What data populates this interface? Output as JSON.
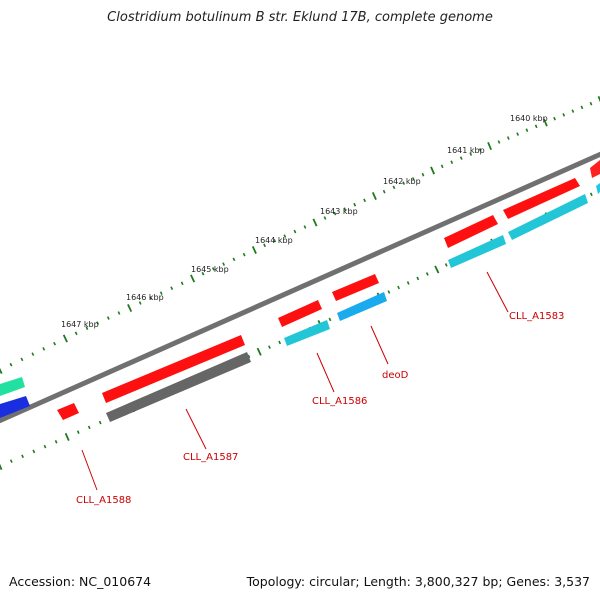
{
  "title": "Clostridium botulinum B str. Eklund 17B, complete genome",
  "footer": {
    "accession": "Accession: NC_010674",
    "summary": "Topology: circular; Length: 3,800,327 bp; Genes: 3,537"
  },
  "colors": {
    "backbone": "#808080",
    "tick": "#1f7a1f",
    "label_gene": "#cc0000",
    "label_kbp": "#222222",
    "feature_red": "#ff0000",
    "feature_cyan": "#22c6d6",
    "feature_grey": "#6b6b6b",
    "feature_sky": "#22aaee",
    "feature_green": "#22e0a0",
    "feature_blue": "#1a2ee0"
  },
  "kbp_labels": [
    "1640 kbp",
    "1641 kbp",
    "1642 kbp",
    "1643 kbp",
    "1644 kbp",
    "1645 kbp",
    "1646 kbp",
    "1647 kbp"
  ],
  "gene_labels": [
    "CLL_A1583",
    "deoD",
    "CLL_A1586",
    "CLL_A1587",
    "CLL_A1588"
  ]
}
